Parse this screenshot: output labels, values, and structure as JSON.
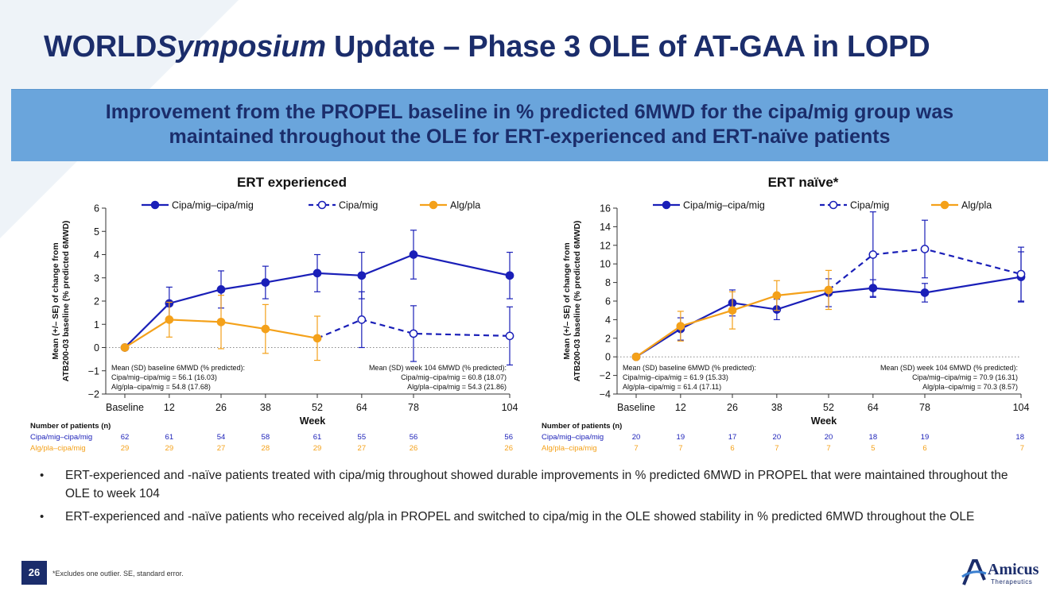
{
  "header": {
    "title_part1": "WORLD",
    "title_italic": "Symposium",
    "title_part2": " Update – Phase 3 OLE of AT-GAA in LOPD"
  },
  "banner": {
    "line1": "Improvement from the PROPEL baseline in % predicted 6MWD for the cipa/mig group was",
    "line2": "maintained throughout the OLE for ERT-experienced and ERT-naïve patients"
  },
  "colors": {
    "navy": "#1b2d6b",
    "blue": "#1a1fb8",
    "orange": "#f4a11a",
    "banner": "#6aa5dc"
  },
  "chart_data": [
    {
      "type": "line",
      "title": "ERT experienced",
      "xlabel": "Week",
      "ylabel": "Mean (+/– SE) of change from ATB200-03 baseline (% predicted 6MWD)",
      "ylim": [
        -2,
        6
      ],
      "yticks": [
        -2,
        -1,
        0,
        1,
        2,
        3,
        4,
        5,
        6
      ],
      "x_values": [
        0,
        12,
        26,
        38,
        52,
        64,
        78,
        104
      ],
      "x_labels": [
        "Baseline",
        "12",
        "26",
        "38",
        "52",
        "64",
        "78",
        "104"
      ],
      "legend": [
        "Cipa/mig–cipa/mig",
        "Cipa/mig",
        "Alg/pla"
      ],
      "series": [
        {
          "name": "Cipa/mig–cipa/mig",
          "style": "solid-filled",
          "color": "#1a1fb8",
          "x": [
            0,
            12,
            26,
            38,
            52,
            64,
            78,
            104
          ],
          "y": [
            0,
            1.9,
            2.5,
            2.8,
            3.2,
            3.1,
            4.0,
            3.1
          ],
          "err": [
            0,
            0.7,
            0.8,
            0.7,
            0.8,
            1.0,
            1.05,
            1.0
          ]
        },
        {
          "name": "Cipa/mig",
          "style": "dashed-open",
          "color": "#1a1fb8",
          "x": [
            52,
            64,
            78,
            104
          ],
          "y": [
            0.4,
            1.2,
            0.6,
            0.5
          ],
          "err": [
            0,
            1.2,
            1.2,
            1.25
          ],
          "marker_start": 1
        },
        {
          "name": "Alg/pla",
          "style": "solid-filled",
          "color": "#f4a11a",
          "x": [
            0,
            12,
            26,
            38,
            52
          ],
          "y": [
            0,
            1.2,
            1.1,
            0.8,
            0.4
          ],
          "err": [
            0,
            0.75,
            1.15,
            1.05,
            0.95
          ]
        }
      ],
      "annot_left": [
        "Mean (SD) baseline 6MWD (% predicted):",
        "Cipa/mig–cipa/mig = 56.1 (16.03)",
        "Alg/pla–cipa/mig = 54.8 (17.68)"
      ],
      "annot_right": [
        "Mean (SD) week 104 6MWD (% predicted):",
        "Cipa/mig–cipa/mig = 60.8 (18.07)",
        "Alg/pla–cipa/mig = 54.3 (21.86)"
      ],
      "n_title": "Number of patients (n)",
      "n_rows": [
        {
          "label": "Cipa/mig–cipa/mig",
          "color": "#1a1fb8",
          "values": [
            "62",
            "61",
            "54",
            "58",
            "61",
            "55",
            "56",
            "56"
          ]
        },
        {
          "label": "Alg/pla–cipa/mig",
          "color": "#f4a11a",
          "values": [
            "29",
            "29",
            "27",
            "28",
            "29",
            "27",
            "26",
            "26"
          ]
        }
      ]
    },
    {
      "type": "line",
      "title": "ERT naïve*",
      "xlabel": "Week",
      "ylabel": "Mean (+/– SE) of change from ATB200-03 baseline (% predicted 6MWD)",
      "ylim": [
        -4,
        16
      ],
      "yticks": [
        -4,
        -2,
        0,
        2,
        4,
        6,
        8,
        10,
        12,
        14,
        16
      ],
      "x_values": [
        0,
        12,
        26,
        38,
        52,
        64,
        78,
        104
      ],
      "x_labels": [
        "Baseline",
        "12",
        "26",
        "38",
        "52",
        "64",
        "78",
        "104"
      ],
      "legend": [
        "Cipa/mig–cipa/mig",
        "Cipa/mig",
        "Alg/pla"
      ],
      "series": [
        {
          "name": "Cipa/mig–cipa/mig",
          "style": "solid-filled",
          "color": "#1a1fb8",
          "x": [
            0,
            12,
            26,
            38,
            52,
            64,
            78,
            104
          ],
          "y": [
            0,
            3.0,
            5.8,
            5.1,
            6.9,
            7.4,
            6.9,
            8.6
          ],
          "err": [
            0,
            1.2,
            1.4,
            1.1,
            1.5,
            0.9,
            1.0,
            2.7
          ]
        },
        {
          "name": "Cipa/mig",
          "style": "dashed-open",
          "color": "#1a1fb8",
          "x": [
            52,
            64,
            78,
            104
          ],
          "y": [
            7.2,
            11.0,
            11.6,
            8.9
          ],
          "err": [
            0,
            4.6,
            3.1,
            2.9
          ],
          "marker_start": 1
        },
        {
          "name": "Alg/pla",
          "style": "solid-filled",
          "color": "#f4a11a",
          "x": [
            0,
            12,
            26,
            38,
            52
          ],
          "y": [
            0,
            3.3,
            5.0,
            6.6,
            7.2
          ],
          "err": [
            0,
            1.6,
            2.0,
            1.6,
            2.1
          ]
        }
      ],
      "annot_left": [
        "Mean (SD) baseline 6MWD (% predicted):",
        "Cipa/mig–cipa/mig = 61.9 (15.33)",
        "Alg/pla–cipa/mig = 61.4 (17.11)"
      ],
      "annot_right": [
        "Mean (SD) week 104 6MWD (% predicted):",
        "Cipa/mig–cipa/mig = 70.9 (16.31)",
        "Alg/pla–cipa/mig = 70.3 (8.57)"
      ],
      "n_title": "Number of patients (n)",
      "n_rows": [
        {
          "label": "Cipa/mig–cipa/mig",
          "color": "#1a1fb8",
          "values": [
            "20",
            "19",
            "17",
            "20",
            "20",
            "18",
            "19",
            "18"
          ]
        },
        {
          "label": "Alg/pla–cipa/mig",
          "color": "#f4a11a",
          "values": [
            "7",
            "7",
            "6",
            "7",
            "7",
            "5",
            "6",
            "7"
          ]
        }
      ]
    }
  ],
  "bullets": [
    "ERT-experienced and -naïve patients treated with cipa/mig throughout showed durable improvements in % predicted 6MWD in PROPEL that were maintained throughout the OLE to week 104",
    "ERT-experienced and -naïve patients who received alg/pla in PROPEL and switched to cipa/mig in the OLE showed stability in % predicted 6MWD throughout the OLE"
  ],
  "bullet_symbol": "•",
  "footer": {
    "page_number": "26",
    "footnote": "*Excludes one outlier. SE, standard error.",
    "logo_name": "Amicus",
    "logo_sub": "Therapeutics"
  }
}
